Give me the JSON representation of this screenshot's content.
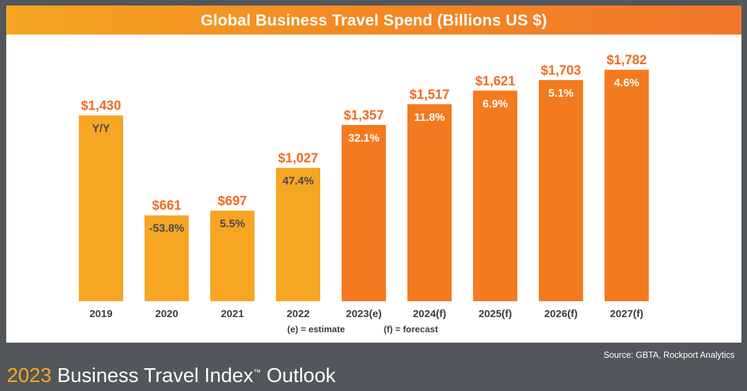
{
  "header": {
    "title": "Global Business Travel Spend (Billions US $)"
  },
  "chart_data": {
    "type": "bar",
    "title": "Global Business Travel Spend (Billions US $)",
    "categories": [
      "2019",
      "2020",
      "2021",
      "2022",
      "2023(e)",
      "2024(f)",
      "2025(f)",
      "2026(f)",
      "2027(f)"
    ],
    "values": [
      1430,
      661,
      697,
      1027,
      1357,
      1517,
      1621,
      1703,
      1782
    ],
    "value_labels": [
      "$1,430",
      "$661",
      "$697",
      "$1,027",
      "$1,357",
      "$1,517",
      "$1,621",
      "$1,703",
      "$1,782"
    ],
    "yoy_labels": [
      "Y/Y",
      "-53.8%",
      "5.5%",
      "47.4%",
      "32.1%",
      "11.8%",
      "6.9%",
      "5.1%",
      "4.6%"
    ],
    "bar_colors": [
      "#f6a623",
      "#f6a623",
      "#f6a623",
      "#f6a623",
      "#f47a20",
      "#f47a20",
      "#f47a20",
      "#f47a20",
      "#f47a20"
    ],
    "value_label_colors": [
      "#f26b21",
      "#f26b21",
      "#f26b21",
      "#f26b21",
      "#f26b21",
      "#f26b21",
      "#f26b21",
      "#f26b21",
      "#f26b21"
    ],
    "yoy_label_colors": [
      "#4a4a4a",
      "#4a4a4a",
      "#4a4a4a",
      "#4a4a4a",
      "#ffffff",
      "#ffffff",
      "#ffffff",
      "#ffffff",
      "#ffffff"
    ],
    "ylim": [
      0,
      1782
    ],
    "xlabel": "",
    "ylabel": "",
    "grid": false,
    "legend": "none",
    "notes": [
      "(e) = estimate",
      "(f) = forecast"
    ]
  },
  "source": "Source: GBTA, Rockport Analytics",
  "footer": {
    "year": "2023",
    "title": " Business Travel Index",
    "trademark": "™",
    "suffix": " Outlook"
  },
  "colors": {
    "background": "#53565a",
    "accent_yellow": "#f6a623",
    "accent_orange": "#f47a20"
  }
}
